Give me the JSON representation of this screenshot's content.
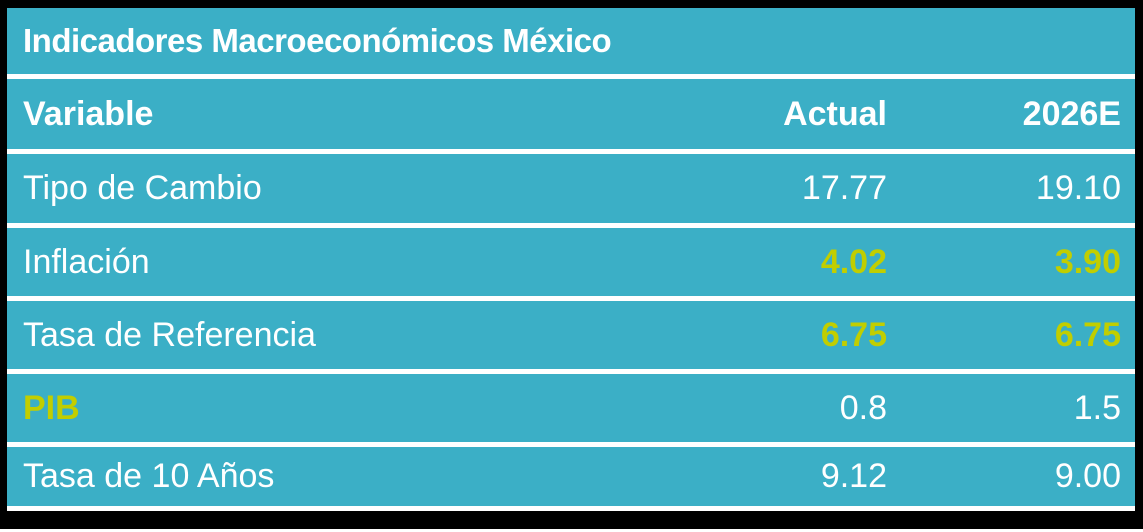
{
  "table": {
    "title": "Indicadores Macroeconómicos México",
    "header": {
      "variable": "Variable",
      "actual": "Actual",
      "estimate": "2026E"
    },
    "rows": [
      {
        "variable": "Tipo de Cambio",
        "actual": "17.77",
        "estimate": "19.10",
        "variable_hl": false,
        "actual_hl": false,
        "estimate_hl": false
      },
      {
        "variable": "Inflación",
        "actual": "4.02",
        "estimate": "3.90",
        "variable_hl": false,
        "actual_hl": true,
        "estimate_hl": true
      },
      {
        "variable": "Tasa de Referencia",
        "actual": "6.75",
        "estimate": "6.75",
        "variable_hl": false,
        "actual_hl": true,
        "estimate_hl": true
      },
      {
        "variable": "PIB",
        "actual": "0.8",
        "estimate": "1.5",
        "variable_hl": true,
        "actual_hl": false,
        "estimate_hl": false
      },
      {
        "variable": "Tasa de 10 Años",
        "actual": "9.12",
        "estimate": "9.00",
        "variable_hl": false,
        "actual_hl": false,
        "estimate_hl": false
      }
    ],
    "colors": {
      "cell_teal": "#3BAFC6",
      "highlight_yellow": "#C1CE00",
      "text_white": "#FFFFFF",
      "frame_black": "#000000",
      "separator_white": "#FFFFFF"
    }
  },
  "chart_data": {
    "type": "table",
    "title": "Indicadores Macroeconómicos México",
    "columns": [
      "Variable",
      "Actual",
      "2026E"
    ],
    "rows": [
      [
        "Tipo de Cambio",
        17.77,
        19.1
      ],
      [
        "Inflación",
        4.02,
        3.9
      ],
      [
        "Tasa de Referencia",
        6.75,
        6.75
      ],
      [
        "PIB",
        0.8,
        1.5
      ],
      [
        "Tasa de 10 Años",
        9.12,
        9.0
      ]
    ],
    "highlighted_cells": [
      "Inflación:Actual",
      "Inflación:2026E",
      "Tasa de Referencia:Actual",
      "Tasa de Referencia:2026E",
      "PIB:Variable"
    ],
    "layout": {
      "header_bold": true,
      "values_right_aligned": true,
      "grid": "white separators on teal, black outer frame"
    }
  }
}
